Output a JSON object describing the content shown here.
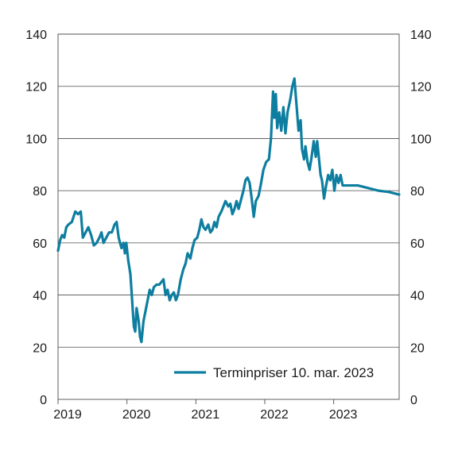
{
  "chart_data": {
    "type": "line",
    "title": "",
    "xlabel": "",
    "ylabel": "",
    "ylim": [
      0,
      140
    ],
    "yticks": [
      0,
      20,
      40,
      60,
      80,
      100,
      120,
      140
    ],
    "xlim": [
      2019.0,
      2023.95
    ],
    "xticks": [
      {
        "label": "2019",
        "value": 2019.0
      },
      {
        "label": "2020",
        "value": 2020.0
      },
      {
        "label": "2021",
        "value": 2021.0
      },
      {
        "label": "2022",
        "value": 2022.0
      },
      {
        "label": "2023",
        "value": 2023.0
      }
    ],
    "grid": true,
    "legend_position": "bottom-right",
    "colors": {
      "series": "#0e7ea0"
    },
    "series": [
      {
        "name": "Terminpriser 10. mar. 2023",
        "points": [
          [
            2019.0,
            57
          ],
          [
            2019.03,
            61
          ],
          [
            2019.06,
            63
          ],
          [
            2019.09,
            62
          ],
          [
            2019.12,
            66
          ],
          [
            2019.15,
            67
          ],
          [
            2019.2,
            68
          ],
          [
            2019.25,
            72
          ],
          [
            2019.29,
            71
          ],
          [
            2019.33,
            72
          ],
          [
            2019.36,
            62
          ],
          [
            2019.4,
            64
          ],
          [
            2019.44,
            66
          ],
          [
            2019.48,
            63
          ],
          [
            2019.52,
            59
          ],
          [
            2019.56,
            60
          ],
          [
            2019.6,
            62
          ],
          [
            2019.63,
            64
          ],
          [
            2019.66,
            60
          ],
          [
            2019.7,
            62
          ],
          [
            2019.74,
            64
          ],
          [
            2019.78,
            64
          ],
          [
            2019.82,
            67
          ],
          [
            2019.85,
            68
          ],
          [
            2019.88,
            62
          ],
          [
            2019.92,
            58
          ],
          [
            2019.95,
            60
          ],
          [
            2019.97,
            56
          ],
          [
            2019.99,
            60
          ],
          [
            2020.02,
            53
          ],
          [
            2020.05,
            48
          ],
          [
            2020.08,
            36
          ],
          [
            2020.1,
            28
          ],
          [
            2020.12,
            26
          ],
          [
            2020.14,
            35
          ],
          [
            2020.17,
            30
          ],
          [
            2020.19,
            24
          ],
          [
            2020.21,
            22
          ],
          [
            2020.24,
            30
          ],
          [
            2020.27,
            34
          ],
          [
            2020.3,
            38
          ],
          [
            2020.33,
            42
          ],
          [
            2020.36,
            40
          ],
          [
            2020.39,
            43
          ],
          [
            2020.43,
            44
          ],
          [
            2020.47,
            44
          ],
          [
            2020.5,
            45
          ],
          [
            2020.53,
            46
          ],
          [
            2020.56,
            40
          ],
          [
            2020.59,
            42
          ],
          [
            2020.62,
            38
          ],
          [
            2020.65,
            40
          ],
          [
            2020.68,
            41
          ],
          [
            2020.71,
            38
          ],
          [
            2020.74,
            40
          ],
          [
            2020.78,
            46
          ],
          [
            2020.82,
            50
          ],
          [
            2020.85,
            52
          ],
          [
            2020.88,
            56
          ],
          [
            2020.92,
            54
          ],
          [
            2020.95,
            58
          ],
          [
            2020.98,
            61
          ],
          [
            2021.02,
            62
          ],
          [
            2021.05,
            65
          ],
          [
            2021.08,
            69
          ],
          [
            2021.11,
            66
          ],
          [
            2021.14,
            65
          ],
          [
            2021.18,
            67
          ],
          [
            2021.21,
            64
          ],
          [
            2021.24,
            65
          ],
          [
            2021.27,
            68
          ],
          [
            2021.3,
            66
          ],
          [
            2021.33,
            70
          ],
          [
            2021.37,
            72
          ],
          [
            2021.4,
            74
          ],
          [
            2021.43,
            76
          ],
          [
            2021.47,
            74
          ],
          [
            2021.5,
            75
          ],
          [
            2021.53,
            71
          ],
          [
            2021.56,
            73
          ],
          [
            2021.59,
            76
          ],
          [
            2021.62,
            73
          ],
          [
            2021.65,
            76
          ],
          [
            2021.69,
            80
          ],
          [
            2021.72,
            84
          ],
          [
            2021.75,
            85
          ],
          [
            2021.78,
            83
          ],
          [
            2021.81,
            77
          ],
          [
            2021.84,
            70
          ],
          [
            2021.87,
            76
          ],
          [
            2021.91,
            78
          ],
          [
            2021.94,
            82
          ],
          [
            2021.98,
            88
          ],
          [
            2022.02,
            91
          ],
          [
            2022.06,
            92
          ],
          [
            2022.09,
            100
          ],
          [
            2022.12,
            118
          ],
          [
            2022.14,
            108
          ],
          [
            2022.16,
            117
          ],
          [
            2022.18,
            104
          ],
          [
            2022.21,
            110
          ],
          [
            2022.24,
            103
          ],
          [
            2022.27,
            112
          ],
          [
            2022.3,
            102
          ],
          [
            2022.33,
            110
          ],
          [
            2022.37,
            115
          ],
          [
            2022.4,
            120
          ],
          [
            2022.43,
            123
          ],
          [
            2022.46,
            113
          ],
          [
            2022.49,
            103
          ],
          [
            2022.52,
            107
          ],
          [
            2022.54,
            96
          ],
          [
            2022.57,
            92
          ],
          [
            2022.59,
            97
          ],
          [
            2022.62,
            91
          ],
          [
            2022.65,
            88
          ],
          [
            2022.68,
            93
          ],
          [
            2022.71,
            99
          ],
          [
            2022.74,
            93
          ],
          [
            2022.76,
            99
          ],
          [
            2022.78,
            94
          ],
          [
            2022.81,
            86
          ],
          [
            2022.83,
            84
          ],
          [
            2022.86,
            77
          ],
          [
            2022.89,
            82
          ],
          [
            2022.92,
            86
          ],
          [
            2022.95,
            84
          ],
          [
            2022.98,
            88
          ],
          [
            2023.01,
            80
          ],
          [
            2023.04,
            86
          ],
          [
            2023.07,
            83
          ],
          [
            2023.1,
            86
          ],
          [
            2023.13,
            82
          ],
          [
            2023.19,
            82
          ],
          [
            2023.35,
            82
          ],
          [
            2023.5,
            81
          ],
          [
            2023.65,
            80
          ],
          [
            2023.8,
            79.5
          ],
          [
            2023.95,
            78.5
          ]
        ]
      }
    ]
  }
}
